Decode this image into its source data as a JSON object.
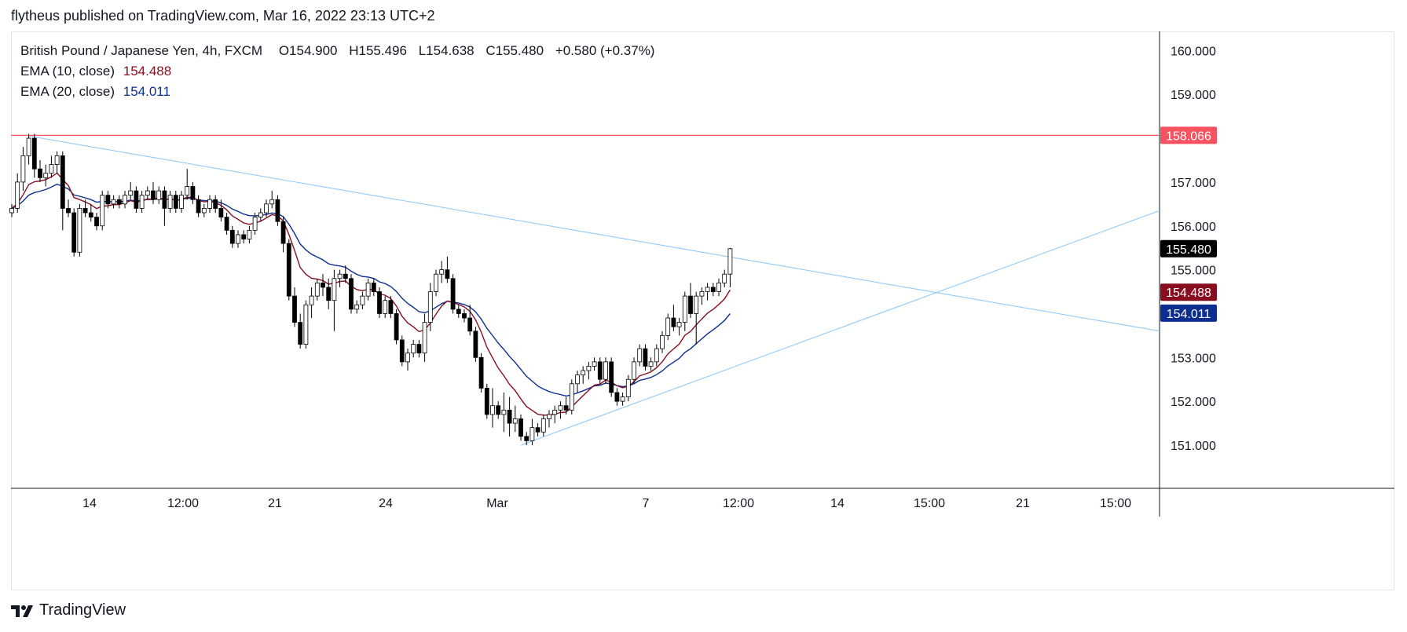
{
  "header": {
    "published_by": "flytheus published on TradingView.com, Mar 16, 2022 23:13 UTC+2"
  },
  "legend": {
    "symbol": "British Pound / Japanese Yen, 4h, FXCM",
    "open_label": "O",
    "open": "154.900",
    "high_label": "H",
    "high": "155.496",
    "low_label": "L",
    "low": "154.638",
    "close_label": "C",
    "close": "155.480",
    "change": "+0.580 (+0.37%)",
    "ema10_label": "EMA (10, close)",
    "ema10_value": "154.488",
    "ema20_label": "EMA (20, close)",
    "ema20_value": "154.011"
  },
  "footer": {
    "brand": "TradingView"
  },
  "colors": {
    "up_body": "#ffffff",
    "down_body": "#000000",
    "wick": "#000000",
    "ema10": "#880e1f",
    "ema20": "#0d2e91",
    "trendline": "#90caf9",
    "hline": "#f7525f",
    "ema10_badge": "#880e1f",
    "ema20_badge": "#0d2e91",
    "price_badge": "#000000"
  },
  "chart_data": {
    "type": "candlestick",
    "y_axis": {
      "ticks": [
        "160.000",
        "159.000",
        "158.000",
        "157.000",
        "156.000",
        "155.000",
        "154.000",
        "153.000",
        "152.000",
        "151.000"
      ],
      "range": [
        150.0,
        160.5
      ]
    },
    "x_axis": {
      "ticks": [
        "14",
        "12:00",
        "21",
        "24",
        "Mar",
        "7",
        "12:00",
        "14",
        "15:00",
        "21",
        "15:00"
      ]
    },
    "price_badges": [
      {
        "label": "158.066",
        "value": 158.066,
        "kind": "hline"
      },
      {
        "label": "155.480",
        "value": 155.48,
        "kind": "price"
      },
      {
        "label": "154.488",
        "value": 154.488,
        "kind": "ema10"
      },
      {
        "label": "154.011",
        "value": 154.011,
        "kind": "ema20"
      }
    ],
    "horizontal_line": 158.066,
    "candles": [
      [
        156.3,
        156.5,
        156.2,
        156.4
      ],
      [
        156.4,
        157.2,
        156.3,
        157.0
      ],
      [
        157.0,
        157.8,
        156.8,
        157.6
      ],
      [
        157.6,
        158.1,
        157.4,
        158.0
      ],
      [
        158.0,
        158.1,
        157.1,
        157.3
      ],
      [
        157.3,
        157.5,
        157.0,
        157.1
      ],
      [
        157.1,
        157.4,
        156.9,
        157.2
      ],
      [
        157.2,
        157.6,
        157.1,
        157.4
      ],
      [
        157.4,
        157.7,
        157.2,
        157.6
      ],
      [
        157.6,
        157.7,
        155.9,
        156.4
      ],
      [
        156.4,
        156.6,
        156.2,
        156.3
      ],
      [
        156.3,
        156.4,
        155.3,
        155.4
      ],
      [
        155.4,
        156.5,
        155.3,
        156.4
      ],
      [
        156.4,
        156.6,
        156.2,
        156.3
      ],
      [
        156.3,
        156.5,
        156.1,
        156.2
      ],
      [
        156.2,
        156.3,
        155.9,
        156.0
      ],
      [
        156.0,
        156.8,
        155.9,
        156.7
      ],
      [
        156.7,
        156.8,
        156.4,
        156.5
      ],
      [
        156.5,
        156.7,
        156.4,
        156.6
      ],
      [
        156.6,
        156.7,
        156.4,
        156.5
      ],
      [
        156.5,
        156.8,
        156.4,
        156.7
      ],
      [
        156.7,
        157.0,
        156.6,
        156.8
      ],
      [
        156.8,
        156.9,
        156.3,
        156.4
      ],
      [
        156.4,
        156.8,
        156.3,
        156.7
      ],
      [
        156.7,
        156.9,
        156.6,
        156.8
      ],
      [
        156.8,
        157.0,
        156.5,
        156.6
      ],
      [
        156.6,
        156.9,
        156.5,
        156.8
      ],
      [
        156.8,
        156.9,
        156.0,
        156.4
      ],
      [
        156.4,
        156.8,
        156.3,
        156.7
      ],
      [
        156.7,
        156.8,
        156.3,
        156.4
      ],
      [
        156.4,
        156.8,
        156.3,
        156.7
      ],
      [
        156.7,
        157.3,
        156.6,
        156.9
      ],
      [
        156.9,
        157.0,
        156.5,
        156.6
      ],
      [
        156.6,
        156.7,
        156.2,
        156.3
      ],
      [
        156.3,
        156.5,
        156.2,
        156.4
      ],
      [
        156.4,
        156.7,
        156.3,
        156.6
      ],
      [
        156.6,
        156.7,
        156.3,
        156.4
      ],
      [
        156.4,
        156.6,
        156.1,
        156.2
      ],
      [
        156.2,
        156.3,
        155.8,
        155.9
      ],
      [
        155.9,
        156.0,
        155.5,
        155.6
      ],
      [
        155.6,
        155.9,
        155.5,
        155.8
      ],
      [
        155.8,
        155.9,
        155.6,
        155.7
      ],
      [
        155.7,
        156.0,
        155.6,
        155.9
      ],
      [
        155.9,
        156.3,
        155.8,
        156.2
      ],
      [
        156.2,
        156.4,
        156.1,
        156.3
      ],
      [
        156.3,
        156.6,
        156.2,
        156.5
      ],
      [
        156.5,
        156.8,
        156.4,
        156.6
      ],
      [
        156.6,
        156.7,
        156.0,
        156.1
      ],
      [
        156.1,
        156.2,
        155.4,
        155.6
      ],
      [
        155.6,
        155.7,
        154.3,
        154.4
      ],
      [
        154.4,
        154.6,
        153.7,
        153.8
      ],
      [
        153.8,
        154.0,
        153.2,
        153.3
      ],
      [
        153.3,
        154.3,
        153.2,
        154.2
      ],
      [
        154.2,
        154.6,
        153.9,
        154.4
      ],
      [
        154.4,
        154.8,
        154.3,
        154.7
      ],
      [
        154.7,
        154.9,
        154.4,
        154.6
      ],
      [
        154.6,
        154.8,
        154.1,
        154.3
      ],
      [
        154.3,
        155.0,
        153.6,
        154.8
      ],
      [
        154.8,
        155.0,
        154.6,
        154.9
      ],
      [
        154.9,
        155.1,
        154.7,
        154.8
      ],
      [
        154.8,
        154.9,
        154.0,
        154.1
      ],
      [
        154.1,
        154.3,
        154.0,
        154.2
      ],
      [
        154.2,
        154.5,
        154.1,
        154.4
      ],
      [
        154.4,
        154.8,
        154.3,
        154.7
      ],
      [
        154.7,
        154.8,
        154.4,
        154.5
      ],
      [
        154.5,
        154.6,
        153.9,
        154.0
      ],
      [
        154.0,
        154.4,
        153.9,
        154.3
      ],
      [
        154.3,
        154.4,
        153.9,
        154.0
      ],
      [
        154.0,
        154.1,
        153.3,
        153.4
      ],
      [
        153.4,
        153.5,
        152.8,
        152.9
      ],
      [
        152.9,
        153.2,
        152.7,
        153.1
      ],
      [
        153.1,
        153.4,
        153.0,
        153.3
      ],
      [
        153.3,
        153.4,
        153.0,
        153.1
      ],
      [
        153.1,
        154.0,
        152.9,
        153.8
      ],
      [
        153.8,
        154.7,
        153.6,
        154.5
      ],
      [
        154.5,
        155.0,
        154.4,
        154.9
      ],
      [
        154.9,
        155.2,
        154.7,
        155.0
      ],
      [
        155.0,
        155.3,
        154.7,
        154.8
      ],
      [
        154.8,
        154.9,
        154.0,
        154.1
      ],
      [
        154.1,
        154.2,
        153.9,
        154.0
      ],
      [
        154.0,
        154.1,
        153.8,
        153.9
      ],
      [
        153.9,
        154.2,
        153.5,
        153.6
      ],
      [
        153.6,
        153.7,
        152.9,
        153.0
      ],
      [
        153.0,
        153.1,
        152.2,
        152.3
      ],
      [
        152.3,
        152.4,
        151.6,
        151.7
      ],
      [
        151.7,
        152.3,
        151.4,
        151.9
      ],
      [
        151.9,
        152.0,
        151.6,
        151.7
      ],
      [
        151.7,
        152.2,
        151.3,
        151.8
      ],
      [
        151.8,
        152.1,
        151.2,
        151.5
      ],
      [
        151.5,
        151.9,
        151.3,
        151.6
      ],
      [
        151.6,
        151.7,
        151.1,
        151.2
      ],
      [
        151.2,
        151.3,
        151.0,
        151.1
      ],
      [
        151.1,
        151.6,
        151.0,
        151.4
      ],
      [
        151.4,
        151.5,
        151.2,
        151.3
      ],
      [
        151.3,
        151.7,
        151.2,
        151.6
      ],
      [
        151.6,
        151.8,
        151.4,
        151.7
      ],
      [
        151.7,
        151.9,
        151.5,
        151.8
      ],
      [
        151.8,
        152.0,
        151.6,
        151.9
      ],
      [
        151.9,
        152.1,
        151.7,
        151.8
      ],
      [
        151.8,
        152.5,
        151.7,
        152.4
      ],
      [
        152.4,
        152.7,
        152.2,
        152.6
      ],
      [
        152.6,
        152.8,
        152.4,
        152.7
      ],
      [
        152.7,
        152.9,
        152.5,
        152.8
      ],
      [
        152.8,
        153.0,
        152.7,
        152.9
      ],
      [
        152.9,
        153.0,
        152.4,
        152.5
      ],
      [
        152.5,
        153.0,
        152.4,
        152.9
      ],
      [
        152.9,
        153.0,
        152.1,
        152.2
      ],
      [
        152.2,
        152.3,
        151.9,
        152.0
      ],
      [
        152.0,
        152.2,
        151.9,
        152.1
      ],
      [
        152.1,
        152.6,
        152.0,
        152.5
      ],
      [
        152.5,
        153.0,
        152.4,
        152.9
      ],
      [
        152.9,
        153.3,
        152.8,
        153.2
      ],
      [
        153.2,
        153.3,
        152.7,
        152.8
      ],
      [
        152.8,
        153.0,
        152.7,
        152.9
      ],
      [
        152.9,
        153.3,
        152.8,
        153.2
      ],
      [
        153.2,
        153.6,
        153.1,
        153.5
      ],
      [
        153.5,
        154.0,
        153.4,
        153.9
      ],
      [
        153.9,
        154.2,
        153.6,
        153.7
      ],
      [
        153.7,
        153.9,
        153.5,
        153.8
      ],
      [
        153.8,
        154.5,
        153.6,
        154.4
      ],
      [
        154.4,
        154.7,
        153.9,
        154.0
      ],
      [
        154.0,
        154.5,
        153.3,
        154.4
      ],
      [
        154.4,
        154.6,
        154.2,
        154.5
      ],
      [
        154.5,
        154.7,
        154.3,
        154.6
      ],
      [
        154.6,
        154.7,
        154.4,
        154.5
      ],
      [
        154.5,
        154.8,
        154.4,
        154.7
      ],
      [
        154.7,
        155.0,
        154.6,
        154.9
      ],
      [
        154.9,
        155.5,
        154.6,
        155.48
      ]
    ],
    "trendlines": [
      {
        "name": "descending",
        "points": [
          [
            3,
            158.05
          ],
          [
            185,
            154.0
          ]
        ]
      },
      {
        "name": "ascending",
        "points": [
          [
            90,
            151.0
          ],
          [
            185,
            155.5
          ]
        ]
      }
    ]
  }
}
